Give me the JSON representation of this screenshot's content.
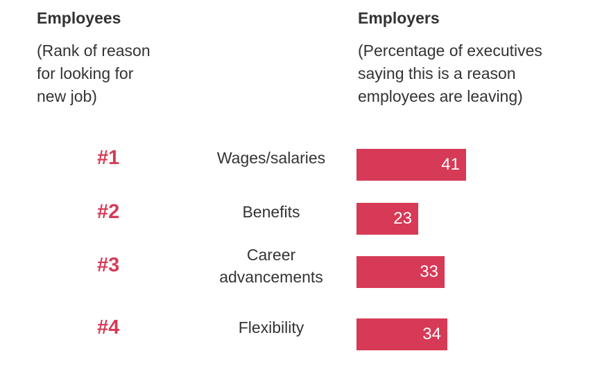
{
  "employees": {
    "title": "Employees",
    "subtitle": "(Rank of reason\nfor looking for\nnew job)"
  },
  "employers": {
    "title": "Employers",
    "subtitle": "(Percentage of executives\nsaying this is a reason\nemployees are leaving)"
  },
  "colors": {
    "accent": "#d63a56",
    "text": "#333333"
  },
  "chart_data": {
    "type": "bar",
    "orientation": "horizontal",
    "categories": [
      "Wages/salaries",
      "Benefits",
      "Career\nadvancements",
      "Flexibility"
    ],
    "ranks": [
      "#1",
      "#2",
      "#3",
      "#4"
    ],
    "values": [
      41,
      23,
      33,
      34
    ],
    "value_labels": [
      "41",
      "23",
      "33",
      "34"
    ],
    "xlim": [
      0,
      100
    ],
    "grid": false,
    "legend": "none"
  }
}
